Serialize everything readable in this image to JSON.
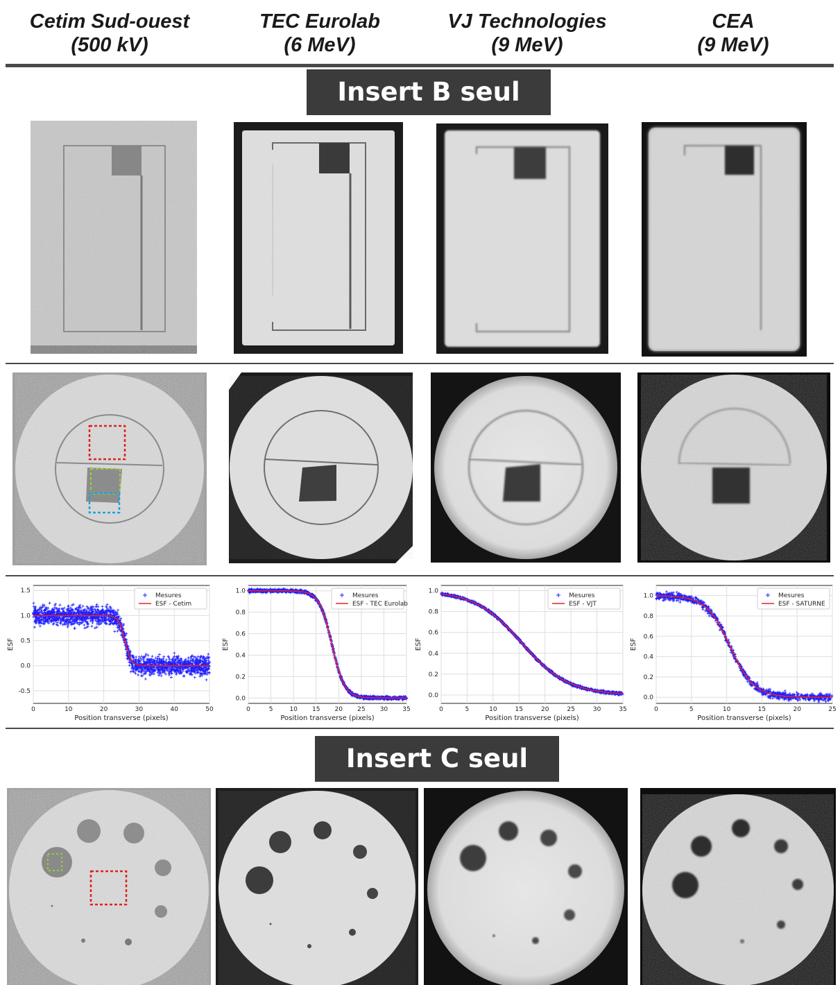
{
  "columns": [
    {
      "name": "Cetim Sud-ouest",
      "energy": "(500 kV)"
    },
    {
      "name": "TEC Eurolab",
      "energy": "(6 MeV)"
    },
    {
      "name": "VJ Technologies",
      "energy": "(9 MeV)"
    },
    {
      "name": "CEA",
      "energy": "(9 MeV)"
    }
  ],
  "sections": {
    "insert_b": "Insert B seul",
    "insert_c": "Insert C seul"
  },
  "plot_axis": {
    "ylabel": "ESF",
    "xlabel": "Position transverse (pixels)"
  },
  "chart_data": [
    {
      "type": "scatter",
      "xlabel": "Position transverse (pixels)",
      "ylabel": "ESF",
      "xlim": [
        0,
        50
      ],
      "ylim": [
        -0.75,
        1.6
      ],
      "xticks": [
        0,
        10,
        20,
        30,
        40,
        50
      ],
      "yticks": [
        -0.5,
        0.0,
        0.5,
        1.0,
        1.5
      ],
      "grid": true,
      "legend_position": "top-right",
      "series": [
        {
          "name": "Mesures",
          "marker": "+",
          "color": "#1f1fff",
          "noise": 0.18
        },
        {
          "name": "ESF - Cetim",
          "marker": "line",
          "color": "#e8202a",
          "model": {
            "high": 1.0,
            "low": 0.0,
            "center": 26,
            "width": 0.9
          }
        }
      ]
    },
    {
      "type": "scatter",
      "xlabel": "Position transverse (pixels)",
      "ylabel": "ESF",
      "xlim": [
        0,
        35
      ],
      "ylim": [
        -0.05,
        1.05
      ],
      "xticks": [
        0,
        5,
        10,
        15,
        20,
        25,
        30,
        35
      ],
      "yticks": [
        0.0,
        0.2,
        0.4,
        0.6,
        0.8,
        1.0
      ],
      "grid": true,
      "legend_position": "top-right",
      "series": [
        {
          "name": "Mesures",
          "marker": "+",
          "color": "#1f1fff",
          "noise": 0.015
        },
        {
          "name": "ESF - TEC Eurolab",
          "marker": "line",
          "color": "#e8202a",
          "model": {
            "high": 1.0,
            "low": 0.0,
            "center": 18.5,
            "width": 1.4
          }
        }
      ]
    },
    {
      "type": "scatter",
      "xlabel": "Position transverse (pixels)",
      "ylabel": "ESF",
      "xlim": [
        0,
        35
      ],
      "ylim": [
        -0.08,
        1.05
      ],
      "xticks": [
        0,
        5,
        10,
        15,
        20,
        25,
        30,
        35
      ],
      "yticks": [
        0.0,
        0.2,
        0.4,
        0.6,
        0.8,
        1.0
      ],
      "grid": true,
      "legend_position": "top-right",
      "series": [
        {
          "name": "Mesures",
          "marker": "+",
          "color": "#1f1fff",
          "noise": 0.012
        },
        {
          "name": "ESF - VJT",
          "marker": "line",
          "color": "#e8202a",
          "model": {
            "high": 1.0,
            "low": 0.0,
            "center": 15.5,
            "width": 4.5
          }
        }
      ]
    },
    {
      "type": "scatter",
      "xlabel": "Position transverse (pixels)",
      "ylabel": "ESF",
      "xlim": [
        0,
        25
      ],
      "ylim": [
        -0.06,
        1.1
      ],
      "xticks": [
        0,
        5,
        10,
        15,
        20,
        25
      ],
      "yticks": [
        0.0,
        0.2,
        0.4,
        0.6,
        0.8,
        1.0
      ],
      "grid": true,
      "legend_position": "top-right",
      "series": [
        {
          "name": "Mesures",
          "marker": "+",
          "color": "#1f1fff",
          "noise": 0.035
        },
        {
          "name": "ESF - SATURNE",
          "marker": "line",
          "color": "#e8202a",
          "model": {
            "high": 1.0,
            "low": 0.0,
            "center": 10.5,
            "width": 1.7
          }
        }
      ]
    }
  ]
}
